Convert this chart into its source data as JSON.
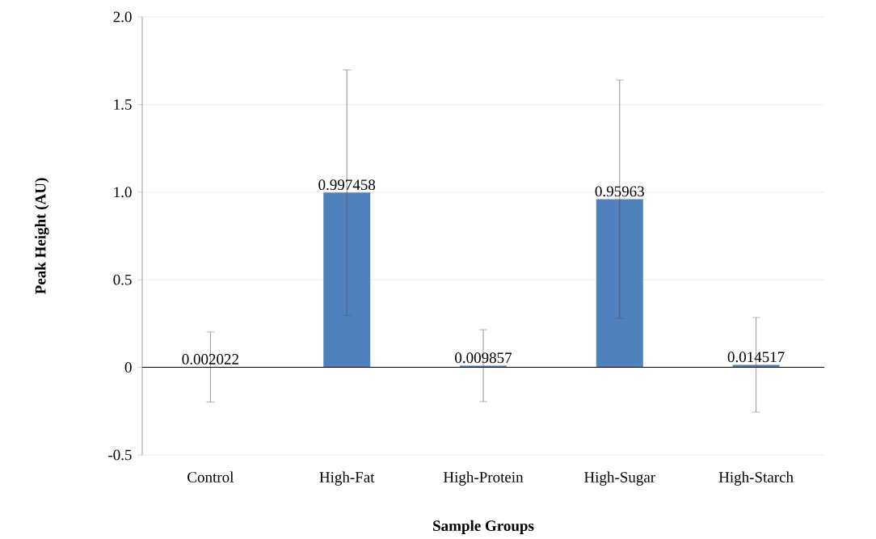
{
  "chart_data": {
    "type": "bar",
    "xlabel": "Sample Groups",
    "ylabel": "Peak Height (AU)",
    "categories": [
      "Control",
      "High-Fat",
      "High-Protein",
      "High-Sugar",
      "High-Starch"
    ],
    "values": [
      0.002022,
      0.997458,
      0.009857,
      0.95963,
      0.014517
    ],
    "errors": [
      0.2,
      0.7,
      0.205,
      0.68,
      0.27
    ],
    "color": "#4f81bd",
    "data_labels": true,
    "grid": "y",
    "ylim": [
      -0.5,
      2.0
    ],
    "yticks": [
      -0.5,
      0,
      {
        "value": 0.5,
        "label": "0.5"
      },
      {
        "value": 1.0,
        "label": "1.0"
      },
      {
        "value": 1.5,
        "label": "1.5"
      },
      {
        "value": 2.0,
        "label": "2.0"
      }
    ]
  }
}
